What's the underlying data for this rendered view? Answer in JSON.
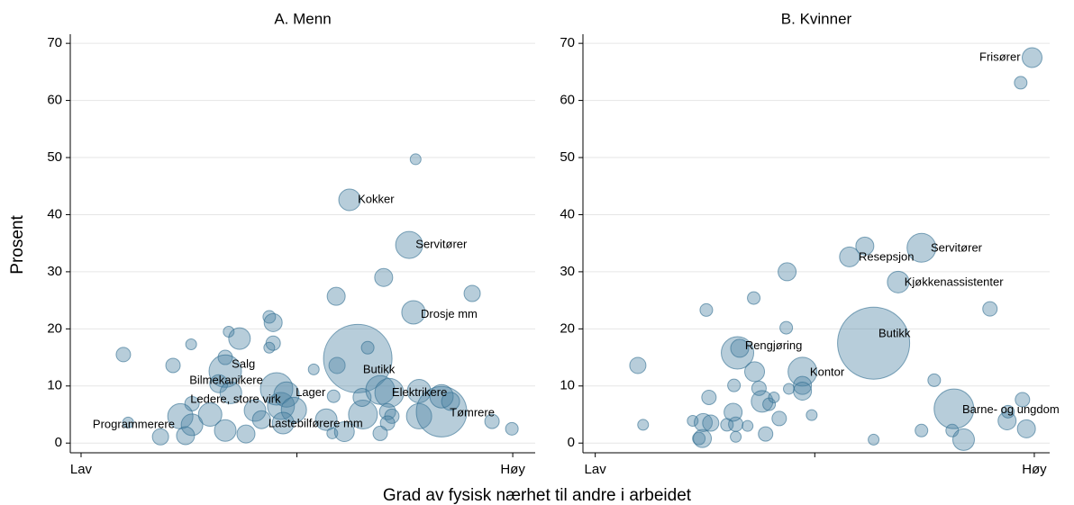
{
  "chart_data": [
    {
      "type": "scatter",
      "title": "A. Menn",
      "xlabel": "Grad av fysisk nærhet til andre i arbeidet",
      "ylabel": "Prosent",
      "color": "#4a82a3",
      "edge_color": "#2f6c8f",
      "grid": true,
      "xlim": [
        -0.025,
        1.052
      ],
      "ylim": [
        -1.7,
        71.6
      ],
      "xticks": [
        {
          "value": 0,
          "label": "Lav"
        },
        {
          "value": 0.5,
          "label": null
        },
        {
          "value": 1,
          "label": "Høy"
        }
      ],
      "yticks": [
        0,
        10,
        20,
        30,
        40,
        50,
        60,
        70
      ],
      "x": [
        0.098,
        0.213,
        0.255,
        0.342,
        0.367,
        0.436,
        0.445,
        0.445,
        0.436,
        0.334,
        0.334,
        0.319,
        0.347,
        0.257,
        0.23,
        0.257,
        0.184,
        0.242,
        0.109,
        0.299,
        0.334,
        0.382,
        0.403,
        0.463,
        0.453,
        0.476,
        0.493,
        0.468,
        0.418,
        0.539,
        0.591,
        0.622,
        0.593,
        0.568,
        0.585,
        0.582,
        0.61,
        0.641,
        0.653,
        0.664,
        0.651,
        0.701,
        0.76,
        0.775,
        0.77,
        0.693,
        0.714,
        0.71,
        0.72,
        0.71,
        0.693,
        0.783,
        0.783,
        0.835,
        0.835,
        0.856,
        0.906,
        0.952,
        0.998
      ],
      "values": [
        15.5,
        13.6,
        17.3,
        19.5,
        18.3,
        22.1,
        21.1,
        17.5,
        16.7,
        15.0,
        12.6,
        10.4,
        8.8,
        6.9,
        4.7,
        3.2,
        1.1,
        1.3,
        3.6,
        5.0,
        2.2,
        1.6,
        5.7,
        6.5,
        9.5,
        8.5,
        5.8,
        3.5,
        4.1,
        12.9,
        25.7,
        42.6,
        13.6,
        4.1,
        8.2,
        1.7,
        2.0,
        14.8,
        5.0,
        16.7,
        8.0,
        29.0,
        34.7,
        49.7,
        22.9,
        9.3,
        8.8,
        5.5,
        4.7,
        3.5,
        1.7,
        9.1,
        4.7,
        5.5,
        8.2,
        7.3,
        26.2,
        3.8,
        2.5
      ],
      "sizes": [
        8,
        8,
        6,
        6,
        12,
        7,
        10,
        8,
        6,
        8,
        18,
        10,
        12,
        8,
        14,
        12,
        9,
        10,
        6,
        13,
        12,
        10,
        12,
        15,
        18,
        14,
        14,
        12,
        10,
        6,
        10,
        12,
        9,
        12,
        7,
        6,
        11,
        38,
        16,
        7,
        10,
        10,
        15,
        6,
        13,
        16,
        16,
        9,
        8,
        8,
        8,
        13,
        14,
        28,
        13,
        10,
        9,
        8,
        7
      ],
      "annotations": [
        {
          "text": "Kokker",
          "x": 0.641,
          "y": 42.6
        },
        {
          "text": "Servitører",
          "x": 0.775,
          "y": 34.7
        },
        {
          "text": "Drosje mm",
          "x": 0.787,
          "y": 22.5
        },
        {
          "text": "Salg",
          "x": 0.349,
          "y": 13.7
        },
        {
          "text": "Butikk",
          "x": 0.653,
          "y": 12.8
        },
        {
          "text": "Bilmekanikere",
          "x": 0.251,
          "y": 10.9
        },
        {
          "text": "Lager",
          "x": 0.497,
          "y": 8.8
        },
        {
          "text": "Elektrikere",
          "x": 0.72,
          "y": 8.8
        },
        {
          "text": "Ledere, store virk",
          "x": 0.253,
          "y": 7.6
        },
        {
          "text": "Tømrere",
          "x": 0.854,
          "y": 5.2
        },
        {
          "text": "Lastebilførere mm",
          "x": 0.434,
          "y": 3.3
        },
        {
          "text": "Programmerere",
          "x": 0.027,
          "y": 3.2
        }
      ]
    },
    {
      "type": "scatter",
      "title": "B. Kvinner",
      "color": "#4a82a3",
      "edge_color": "#2f6c8f",
      "grid": true,
      "xlim": [
        -0.028,
        1.035
      ],
      "ylim": [
        -1.7,
        71.6
      ],
      "xticks": [
        {
          "value": 0,
          "label": "Lav"
        },
        {
          "value": 0.5,
          "label": null
        },
        {
          "value": 1,
          "label": "Høy"
        }
      ],
      "yticks": [
        0,
        10,
        20,
        30,
        40,
        50,
        60,
        70
      ],
      "x": [
        0.097,
        0.109,
        0.253,
        0.222,
        0.236,
        0.244,
        0.246,
        0.259,
        0.263,
        0.3,
        0.32,
        0.314,
        0.316,
        0.32,
        0.324,
        0.329,
        0.347,
        0.361,
        0.363,
        0.373,
        0.38,
        0.396,
        0.407,
        0.388,
        0.419,
        0.435,
        0.437,
        0.441,
        0.472,
        0.472,
        0.472,
        0.493,
        0.579,
        0.614,
        0.634,
        0.634,
        0.69,
        0.743,
        0.743,
        0.772,
        0.813,
        0.817,
        0.839,
        0.899,
        0.938,
        0.94,
        0.973,
        0.969,
        0.995,
        0.982
      ],
      "values": [
        13.6,
        3.2,
        23.3,
        3.9,
        0.8,
        0.8,
        3.6,
        8.0,
        3.5,
        3.2,
        3.3,
        5.4,
        10.1,
        1.1,
        15.8,
        16.6,
        3.0,
        25.4,
        12.5,
        9.6,
        7.3,
        6.8,
        8.0,
        1.6,
        4.3,
        20.2,
        30.0,
        9.5,
        12.5,
        10.1,
        9.1,
        4.9,
        32.6,
        34.5,
        17.5,
        0.6,
        28.2,
        2.2,
        34.2,
        11.0,
        2.2,
        6.0,
        0.6,
        23.5,
        3.9,
        5.5,
        7.6,
        63.1,
        67.5,
        2.5
      ],
      "sizes": [
        9,
        6,
        7,
        6,
        7,
        10,
        10,
        8,
        9,
        7,
        8,
        10,
        7,
        6,
        18,
        10,
        6,
        7,
        11,
        8,
        12,
        7,
        6,
        8,
        8,
        7,
        10,
        6,
        16,
        10,
        10,
        6,
        11,
        10,
        40,
        6,
        12,
        7,
        16,
        7,
        7,
        22,
        12,
        8,
        10,
        7,
        8,
        7,
        11,
        10
      ],
      "annotations": [
        {
          "text": "Frisører",
          "x": 0.875,
          "y": 67.5
        },
        {
          "text": "Servitører",
          "x": 0.764,
          "y": 34.1
        },
        {
          "text": "Resepsjon",
          "x": 0.6,
          "y": 32.5
        },
        {
          "text": "Kjøkkenassistenter",
          "x": 0.704,
          "y": 28.1
        },
        {
          "text": "Butikk",
          "x": 0.645,
          "y": 19.1
        },
        {
          "text": "Rengjøring",
          "x": 0.341,
          "y": 17.0
        },
        {
          "text": "Kontor",
          "x": 0.489,
          "y": 12.3
        },
        {
          "text": "Barne- og ungdom",
          "x": 0.836,
          "y": 5.8
        }
      ]
    }
  ]
}
